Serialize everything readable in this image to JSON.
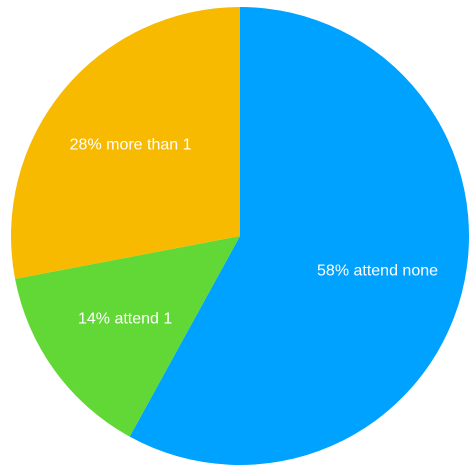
{
  "chart_data": {
    "type": "pie",
    "title": "",
    "start_angle_deg": 0,
    "direction": "clockwise",
    "slices": [
      {
        "label": "58% attend none",
        "value": 58,
        "color": "#00A2FF"
      },
      {
        "label": "14% attend 1",
        "value": 14,
        "color": "#61D836"
      },
      {
        "label": "28% more than 1",
        "value": 28,
        "color": "#F8BA00"
      }
    ]
  }
}
